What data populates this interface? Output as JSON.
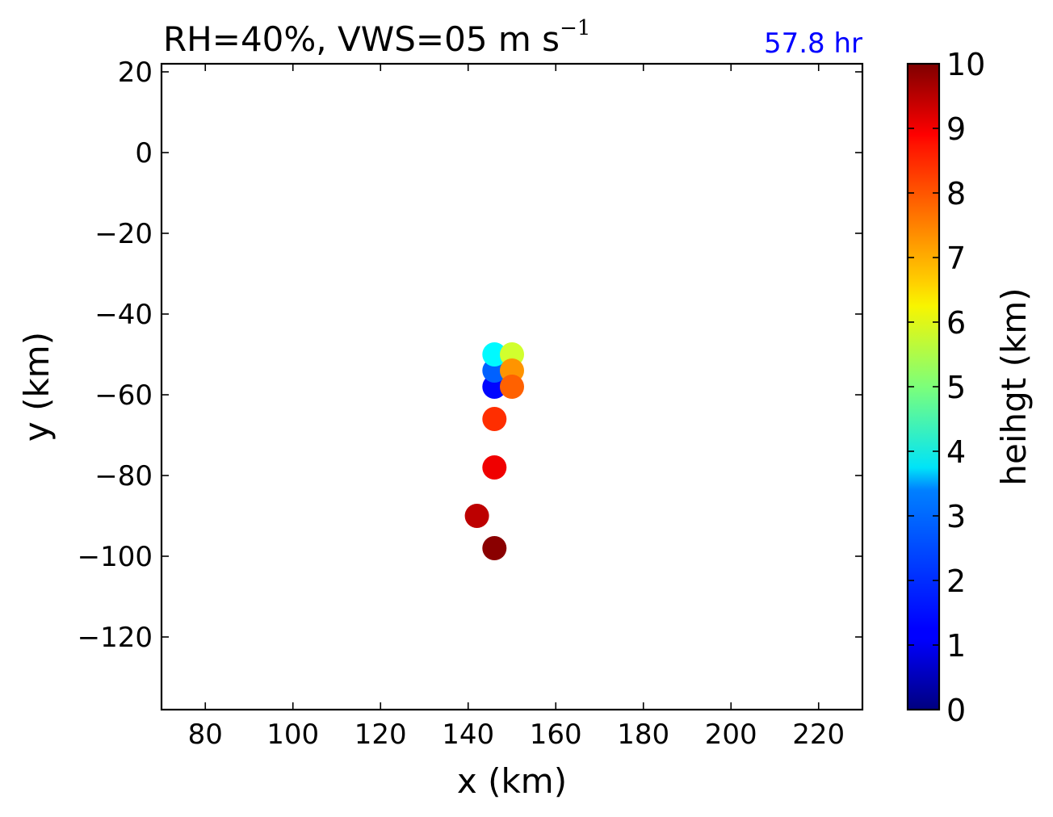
{
  "chart_data": {
    "type": "scatter",
    "title": {
      "prefix": "RH=40%, VWS=05 m s",
      "superscript": "−1"
    },
    "time_label": "57.8 hr",
    "time_label_color": "#0000ff",
    "xlabel": "x (km)",
    "ylabel": "y (km)",
    "xlim": [
      70,
      230
    ],
    "ylim": [
      -138,
      22
    ],
    "xticks": [
      80,
      100,
      120,
      140,
      160,
      180,
      200,
      220
    ],
    "yticks": [
      20,
      0,
      -20,
      -40,
      -60,
      -80,
      -100,
      -120
    ],
    "xtick_labels": [
      "80",
      "100",
      "120",
      "140",
      "160",
      "180",
      "200",
      "220"
    ],
    "ytick_labels": [
      "20",
      "0",
      "−20",
      "−40",
      "−60",
      "−80",
      "−100",
      "−120"
    ],
    "colorbar": {
      "label": "heihgt (km)",
      "range": [
        0,
        10
      ],
      "colormap": "jet",
      "ticks": [
        0,
        1,
        2,
        3,
        4,
        5,
        6,
        7,
        8,
        9,
        10
      ],
      "tick_labels": [
        "0",
        "1",
        "2",
        "3",
        "4",
        "5",
        "6",
        "7",
        "8",
        "9",
        "10"
      ]
    },
    "points": [
      {
        "x": 146,
        "y": -58,
        "height": 1.3
      },
      {
        "x": 146,
        "y": -54,
        "height": 2.2
      },
      {
        "x": 146,
        "y": -50,
        "height": 3.7
      },
      {
        "x": 150,
        "y": -50,
        "height": 5.8
      },
      {
        "x": 150,
        "y": -54,
        "height": 7.3
      },
      {
        "x": 150,
        "y": -58,
        "height": 7.8
      },
      {
        "x": 146,
        "y": -66,
        "height": 8.3
      },
      {
        "x": 146,
        "y": -78,
        "height": 8.9
      },
      {
        "x": 142,
        "y": -90,
        "height": 9.4
      },
      {
        "x": 146,
        "y": -98,
        "height": 9.9
      }
    ]
  }
}
